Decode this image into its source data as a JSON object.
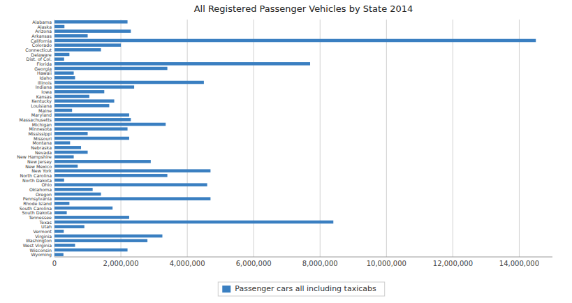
{
  "chart_data": {
    "type": "bar",
    "orientation": "horizontal",
    "title": "All Registered Passenger Vehicles by State 2014",
    "categories": [
      "Alabama",
      "Alaska",
      "Arizona",
      "Arkansas",
      "California",
      "Colorado",
      "Connecticut",
      "Delaware",
      "Dist. of Col.",
      "Florida",
      "Georgia",
      "Hawaii",
      "Idaho",
      "Illinois",
      "Indiana",
      "Iowa",
      "Kansas",
      "Kentucky",
      "Louisiana",
      "Maine",
      "Maryland",
      "Massachusetts",
      "Michigan",
      "Minnesota",
      "Mississippi",
      "Missouri",
      "Montana",
      "Nebraska",
      "Nevada",
      "New Hampshire",
      "New Jersey",
      "New Mexico",
      "New York",
      "North Carolina",
      "North Dakota",
      "Ohio",
      "Oklahoma",
      "Oregon",
      "Pennsylvania",
      "Rhode Island",
      "South Carolina",
      "South Dakota",
      "Tennessee",
      "Texas",
      "Utah",
      "Vermont",
      "Virginia",
      "Washington",
      "West Virginia",
      "Wisconsin",
      "Wyoming"
    ],
    "series": [
      {
        "name": "Passenger cars all including taxicabs",
        "color": "#3a7fc1",
        "values": [
          2200000,
          300000,
          2300000,
          1000000,
          14500000,
          2000000,
          1400000,
          450000,
          290000,
          7700000,
          3400000,
          580000,
          620000,
          4500000,
          2400000,
          1500000,
          1050000,
          1800000,
          1650000,
          530000,
          2250000,
          2300000,
          3350000,
          2200000,
          1000000,
          2250000,
          470000,
          800000,
          1000000,
          580000,
          2900000,
          700000,
          4700000,
          3400000,
          290000,
          4600000,
          1150000,
          1400000,
          4700000,
          450000,
          1750000,
          370000,
          2250000,
          8400000,
          900000,
          280000,
          3250000,
          2800000,
          620000,
          2200000,
          270000
        ]
      }
    ],
    "xlim": [
      0,
      15000000
    ],
    "xticks": [
      0,
      {
        "value": 2000000,
        "label": "2,000,000"
      },
      {
        "value": 4000000,
        "label": "4,000,000"
      },
      {
        "value": 6000000,
        "label": "6,000,000"
      },
      {
        "value": 8000000,
        "label": "8,000,000"
      },
      {
        "value": 10000000,
        "label": "10,000,000"
      },
      {
        "value": 12000000,
        "label": "12,000,000"
      },
      {
        "value": 14000000,
        "label": "14,000,000"
      }
    ],
    "grid": true,
    "legend": "bottom"
  }
}
